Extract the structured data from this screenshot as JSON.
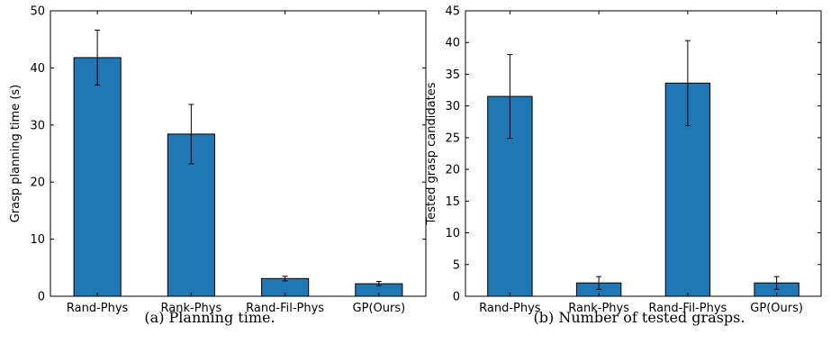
{
  "chart_data": [
    {
      "type": "bar",
      "categories": [
        "Rand-Phys",
        "Rank-Phys",
        "Rand-Fil-Phys",
        "GP(Ours)"
      ],
      "values": [
        41.8,
        28.4,
        3.1,
        2.2
      ],
      "errors": [
        4.8,
        5.2,
        0.4,
        0.4
      ],
      "xlabel": "",
      "ylabel": "Grasp planning time (s)",
      "ylim": [
        0,
        50
      ],
      "yticks": [
        0,
        10,
        20,
        30,
        40,
        50
      ],
      "caption": "(a) Planning time.",
      "grid": false,
      "bar_color": "#1f77b4"
    },
    {
      "type": "bar",
      "categories": [
        "Rand-Phys",
        "Rank-Phys",
        "Rand-Fil-Phys",
        "GP(Ours)"
      ],
      "values": [
        31.5,
        2.1,
        33.6,
        2.1
      ],
      "errors": [
        6.6,
        1.0,
        6.7,
        1.0
      ],
      "xlabel": "",
      "ylabel": "Tested grasp candidates",
      "ylim": [
        0,
        45
      ],
      "yticks": [
        0,
        5,
        10,
        15,
        20,
        25,
        30,
        35,
        40,
        45
      ],
      "caption": "(b) Number of tested grasps.",
      "grid": false,
      "bar_color": "#1f77b4"
    }
  ]
}
